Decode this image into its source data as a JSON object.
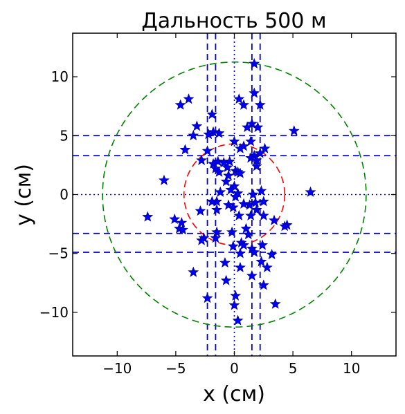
{
  "chart_data": {
    "type": "scatter",
    "title": "Дальность 500 м",
    "xlabel": "x (см)",
    "ylabel": "y (см)",
    "xlim": [
      -13.8,
      13.8
    ],
    "ylim": [
      -13.7,
      13.7
    ],
    "x_ticks": [
      -10,
      -5,
      0,
      5,
      10
    ],
    "y_ticks": [
      -10,
      -5,
      0,
      5,
      10
    ],
    "x_tick_labels": [
      "−10",
      "−5",
      "0",
      "5",
      "10"
    ],
    "y_tick_labels": [
      "−10",
      "−5",
      "0",
      "5",
      "10"
    ],
    "grid": false,
    "marker": "star",
    "colors": {
      "points": "#0000ee",
      "blue_lines": "#0000cc",
      "outer_circle": "#008000",
      "inner_circle": "#ff0000",
      "axes": "#000000"
    },
    "circles": [
      {
        "radius": 11.25,
        "color": "#008000",
        "style": "dashed"
      },
      {
        "radius": 4.3,
        "color": "#ff0000",
        "style": "dashed"
      }
    ],
    "vertical_lines": [
      {
        "x": -2.3,
        "style": "dashed"
      },
      {
        "x": -1.6,
        "style": "dashed"
      },
      {
        "x": 0,
        "style": "dotted"
      },
      {
        "x": 1.5,
        "style": "dashed"
      },
      {
        "x": 2.2,
        "style": "dashed"
      }
    ],
    "horizontal_lines": [
      {
        "y": 5.0,
        "style": "dashed"
      },
      {
        "y": 3.3,
        "style": "dashed"
      },
      {
        "y": 0,
        "style": "dotted"
      },
      {
        "y": -3.3,
        "style": "dashed"
      },
      {
        "y": -4.9,
        "style": "dashed"
      }
    ],
    "series": [
      {
        "points": [
          [
            1.7,
            11.1
          ],
          [
            1.7,
            8.6
          ],
          [
            0.4,
            8.1
          ],
          [
            2.2,
            7.6
          ],
          [
            0.8,
            7.6
          ],
          [
            -3.9,
            8.1
          ],
          [
            -4.6,
            7.6
          ],
          [
            -1.9,
            6.8
          ],
          [
            -3.2,
            5.8
          ],
          [
            1.5,
            6.0
          ],
          [
            1.1,
            5.7
          ],
          [
            2.0,
            5.7
          ],
          [
            -1.8,
            5.3
          ],
          [
            -2.2,
            5.1
          ],
          [
            -1.3,
            5.2
          ],
          [
            -3.5,
            5.0
          ],
          [
            5.1,
            5.4
          ],
          [
            0.0,
            4.5
          ],
          [
            1.4,
            4.5
          ],
          [
            0.8,
            4.1
          ],
          [
            0.5,
            3.9
          ],
          [
            -4.2,
            3.8
          ],
          [
            -2.3,
            3.7
          ],
          [
            2.6,
            3.9
          ],
          [
            2.2,
            3.5
          ],
          [
            1.7,
            3.3
          ],
          [
            1.4,
            3.1
          ],
          [
            1.9,
            2.9
          ],
          [
            -2.8,
            2.9
          ],
          [
            -1.8,
            2.6
          ],
          [
            -1.4,
            2.8
          ],
          [
            -0.9,
            2.7
          ],
          [
            -0.4,
            2.8
          ],
          [
            1.9,
            2.4
          ],
          [
            -1.6,
            2.2
          ],
          [
            -0.6,
            2.3
          ],
          [
            0.1,
            2.0
          ],
          [
            0.3,
            1.9
          ],
          [
            0.5,
            1.8
          ],
          [
            -1.3,
            1.9
          ],
          [
            -0.5,
            1.6
          ],
          [
            -6.0,
            1.2
          ],
          [
            -0.7,
            1.1
          ],
          [
            0.0,
            0.7
          ],
          [
            -0.3,
            0.4
          ],
          [
            -1.2,
            0.2
          ],
          [
            6.5,
            0.2
          ],
          [
            0.3,
            0.1
          ],
          [
            1.6,
            0.0
          ],
          [
            2.3,
            0.3
          ],
          [
            0.1,
            -0.2
          ],
          [
            -1.5,
            -0.6
          ],
          [
            -1.9,
            -0.6
          ],
          [
            -0.5,
            -0.9
          ],
          [
            0.8,
            -0.8
          ],
          [
            1.3,
            -0.9
          ],
          [
            1.8,
            -0.7
          ],
          [
            2.5,
            -0.6
          ],
          [
            -0.1,
            -1.1
          ],
          [
            -1.5,
            -1.3
          ],
          [
            -2.9,
            -1.4
          ],
          [
            1.9,
            -1.3
          ],
          [
            0.4,
            -1.8
          ],
          [
            1.4,
            -1.8
          ],
          [
            -7.4,
            -1.9
          ],
          [
            2.5,
            -1.8
          ],
          [
            -5.1,
            -2.1
          ],
          [
            -4.5,
            -2.4
          ],
          [
            3.4,
            -2.2
          ],
          [
            4.5,
            -2.6
          ],
          [
            4.3,
            -2.7
          ],
          [
            -4.7,
            -2.9
          ],
          [
            -4.4,
            -3.0
          ],
          [
            1.0,
            -2.9
          ],
          [
            1.2,
            -3.4
          ],
          [
            -0.2,
            -3.2
          ],
          [
            -1.5,
            -3.2
          ],
          [
            -2.6,
            -3.7
          ],
          [
            -2.8,
            -3.9
          ],
          [
            -1.6,
            -3.7
          ],
          [
            0.6,
            -4.1
          ],
          [
            0.8,
            -4.3
          ],
          [
            -0.1,
            -4.4
          ],
          [
            2.4,
            -4.3
          ],
          [
            1.5,
            -4.6
          ],
          [
            1.7,
            -4.9
          ],
          [
            0.5,
            -5.0
          ],
          [
            3.2,
            -5.1
          ],
          [
            2.3,
            -5.7
          ],
          [
            -0.8,
            -5.8
          ],
          [
            0.5,
            -6.2
          ],
          [
            2.8,
            -6.2
          ],
          [
            -3.5,
            -6.6
          ],
          [
            1.5,
            -6.9
          ],
          [
            -0.7,
            -7.3
          ],
          [
            2.5,
            -7.7
          ],
          [
            0.1,
            -8.6
          ],
          [
            -2.3,
            -8.8
          ],
          [
            3.5,
            -9.3
          ],
          [
            0.0,
            -9.4
          ],
          [
            0.3,
            -10.7
          ]
        ]
      }
    ]
  }
}
